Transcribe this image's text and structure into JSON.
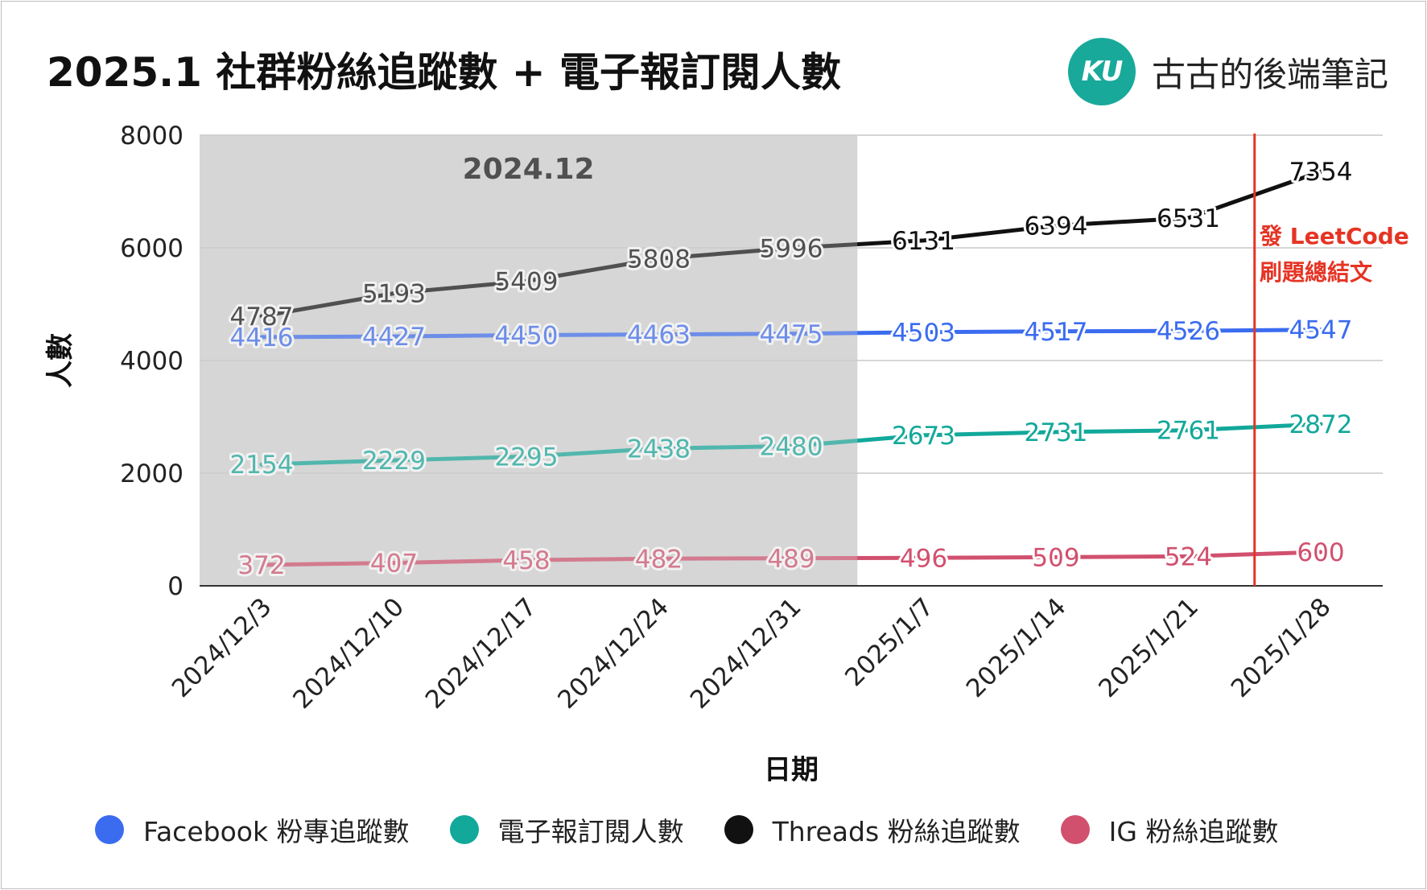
{
  "header": {
    "title": "2025.1 社群粉絲追蹤數 + 電子報訂閱人數",
    "brand_logo_text": "KU",
    "brand_name": "古古的後端筆記",
    "brand_color": "#19a99a"
  },
  "chart_data": {
    "type": "line",
    "title": "2025.1 社群粉絲追蹤數 + 電子報訂閱人數",
    "xlabel": "日期",
    "ylabel": "人數",
    "ylim": [
      0,
      8000
    ],
    "yticks": [
      0,
      2000,
      4000,
      6000,
      8000
    ],
    "grid": true,
    "legend_position": "bottom",
    "categories": [
      "2024/12/3",
      "2024/12/10",
      "2024/12/17",
      "2024/12/24",
      "2024/12/31",
      "2025/1/7",
      "2025/1/14",
      "2025/1/21",
      "2025/1/28"
    ],
    "series": [
      {
        "name": "Facebook 粉專追蹤數",
        "color": "#3b6cf0",
        "values": [
          4416,
          4427,
          4450,
          4463,
          4475,
          4503,
          4517,
          4526,
          4547
        ]
      },
      {
        "name": "電子報訂閱人數",
        "color": "#12a89a",
        "values": [
          2154,
          2229,
          2295,
          2438,
          2480,
          2673,
          2731,
          2761,
          2872
        ]
      },
      {
        "name": "Threads 粉絲追蹤數",
        "color": "#111111",
        "values": [
          4787,
          5193,
          5409,
          5808,
          5996,
          6131,
          6394,
          6531,
          7354
        ]
      },
      {
        "name": "IG 粉絲追蹤數",
        "color": "#d1506e",
        "values": [
          372,
          407,
          458,
          482,
          489,
          496,
          509,
          524,
          600
        ]
      }
    ],
    "highlight_region": {
      "label": "2024.12",
      "from_index": 0,
      "to_index": 4.5,
      "color": "#d6d6d6"
    },
    "annotation": {
      "lines": [
        "發 LeetCode",
        "刷題總結文"
      ],
      "at_index": 7.5,
      "color": "#e53424"
    }
  }
}
